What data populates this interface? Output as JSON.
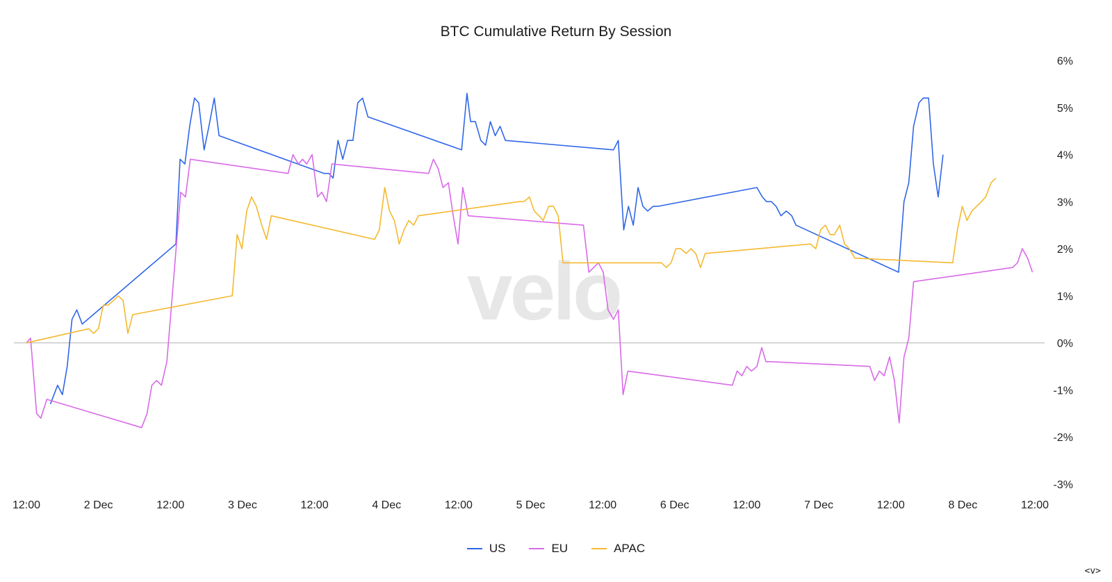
{
  "chart_data": {
    "type": "line",
    "title": "BTC Cumulative Return By Session",
    "xlabel": "",
    "ylabel": "",
    "x_axis": {
      "type": "time",
      "start": "2023-12-01T12:00",
      "end": "2023-12-08T12:00",
      "ticks": [
        {
          "t": 0,
          "label": "12:00"
        },
        {
          "t": 12,
          "label": "2 Dec"
        },
        {
          "t": 24,
          "label": "12:00"
        },
        {
          "t": 36,
          "label": "3 Dec"
        },
        {
          "t": 48,
          "label": "12:00"
        },
        {
          "t": 60,
          "label": "4 Dec"
        },
        {
          "t": 72,
          "label": "12:00"
        },
        {
          "t": 84,
          "label": "5 Dec"
        },
        {
          "t": 96,
          "label": "12:00"
        },
        {
          "t": 108,
          "label": "6 Dec"
        },
        {
          "t": 120,
          "label": "12:00"
        },
        {
          "t": 132,
          "label": "7 Dec"
        },
        {
          "t": 144,
          "label": "12:00"
        },
        {
          "t": 156,
          "label": "8 Dec"
        },
        {
          "t": 168,
          "label": "12:00"
        }
      ]
    },
    "y_axis": {
      "min": -3,
      "max": 6,
      "position": "right",
      "ticks": [
        {
          "v": 6,
          "label": "6%"
        },
        {
          "v": 5,
          "label": "5%"
        },
        {
          "v": 4,
          "label": "4%"
        },
        {
          "v": 3,
          "label": "3%"
        },
        {
          "v": 2,
          "label": "2%"
        },
        {
          "v": 1,
          "label": "1%"
        },
        {
          "v": 0,
          "label": "0%"
        },
        {
          "v": -1,
          "label": "-1%"
        },
        {
          "v": -2,
          "label": "-2%"
        },
        {
          "v": -3,
          "label": "-3%"
        }
      ]
    },
    "grid": false,
    "zero_line": true,
    "legend": {
      "position": "bottom-center"
    },
    "watermark": "velo",
    "series": [
      {
        "name": "US",
        "color": "#2f66e8",
        "points": [
          [
            4.0,
            -1.3
          ],
          [
            4.6,
            -1.1
          ],
          [
            5.2,
            -0.9
          ],
          [
            6.0,
            -1.1
          ],
          [
            6.8,
            -0.5
          ],
          [
            7.6,
            0.5
          ],
          [
            8.4,
            0.7
          ],
          [
            9.3,
            0.4
          ],
          [
            24.9,
            2.1
          ],
          [
            25.6,
            3.9
          ],
          [
            26.4,
            3.8
          ],
          [
            27.2,
            4.6
          ],
          [
            28.0,
            5.2
          ],
          [
            28.7,
            5.1
          ],
          [
            29.6,
            4.1
          ],
          [
            30.4,
            4.6
          ],
          [
            31.3,
            5.2
          ],
          [
            32.1,
            4.4
          ],
          [
            49.6,
            3.6
          ],
          [
            50.4,
            3.6
          ],
          [
            51.1,
            3.5
          ],
          [
            51.9,
            4.3
          ],
          [
            52.7,
            3.9
          ],
          [
            53.5,
            4.3
          ],
          [
            54.4,
            4.3
          ],
          [
            55.2,
            5.1
          ],
          [
            56.0,
            5.2
          ],
          [
            56.9,
            4.8
          ],
          [
            72.5,
            4.1
          ],
          [
            73.4,
            5.3
          ],
          [
            74.0,
            4.7
          ],
          [
            74.8,
            4.7
          ],
          [
            75.7,
            4.3
          ],
          [
            76.5,
            4.2
          ],
          [
            77.3,
            4.7
          ],
          [
            78.1,
            4.4
          ],
          [
            78.9,
            4.6
          ],
          [
            79.8,
            4.3
          ],
          [
            97.8,
            4.1
          ],
          [
            98.6,
            4.3
          ],
          [
            99.5,
            2.4
          ],
          [
            100.3,
            2.9
          ],
          [
            101.1,
            2.5
          ],
          [
            101.9,
            3.3
          ],
          [
            102.7,
            2.9
          ],
          [
            103.5,
            2.8
          ],
          [
            104.4,
            2.9
          ],
          [
            105.2,
            2.9
          ],
          [
            121.7,
            3.3
          ],
          [
            122.6,
            3.1
          ],
          [
            123.3,
            3.0
          ],
          [
            124.1,
            3.0
          ],
          [
            124.9,
            2.9
          ],
          [
            125.7,
            2.7
          ],
          [
            126.6,
            2.8
          ],
          [
            127.5,
            2.7
          ],
          [
            128.2,
            2.5
          ],
          [
            145.3,
            1.5
          ],
          [
            146.2,
            3.0
          ],
          [
            147.0,
            3.4
          ],
          [
            147.8,
            4.6
          ],
          [
            148.7,
            5.1
          ],
          [
            149.4,
            5.2
          ],
          [
            150.3,
            5.2
          ],
          [
            151.1,
            3.8
          ],
          [
            151.9,
            3.1
          ],
          [
            152.7,
            4.0
          ]
        ]
      },
      {
        "name": "EU",
        "color": "#d86ae8",
        "points": [
          [
            0.0,
            0.0
          ],
          [
            0.7,
            0.1
          ],
          [
            1.7,
            -1.5
          ],
          [
            2.4,
            -1.6
          ],
          [
            3.4,
            -1.2
          ],
          [
            19.2,
            -1.8
          ],
          [
            20.1,
            -1.5
          ],
          [
            20.9,
            -0.9
          ],
          [
            21.7,
            -0.8
          ],
          [
            22.5,
            -0.9
          ],
          [
            23.4,
            -0.4
          ],
          [
            25.7,
            3.2
          ],
          [
            26.5,
            3.1
          ],
          [
            27.3,
            3.9
          ],
          [
            43.6,
            3.6
          ],
          [
            44.4,
            4.0
          ],
          [
            45.3,
            3.8
          ],
          [
            46.0,
            3.9
          ],
          [
            46.7,
            3.8
          ],
          [
            47.6,
            4.0
          ],
          [
            48.5,
            3.1
          ],
          [
            49.2,
            3.2
          ],
          [
            50.0,
            3.0
          ],
          [
            50.9,
            3.8
          ],
          [
            67.0,
            3.6
          ],
          [
            67.8,
            3.9
          ],
          [
            68.6,
            3.7
          ],
          [
            69.4,
            3.3
          ],
          [
            70.3,
            3.4
          ],
          [
            71.1,
            2.7
          ],
          [
            71.9,
            2.1
          ],
          [
            72.7,
            3.3
          ],
          [
            73.6,
            2.7
          ],
          [
            92.8,
            2.5
          ],
          [
            93.7,
            1.5
          ],
          [
            94.5,
            1.6
          ],
          [
            95.3,
            1.7
          ],
          [
            96.1,
            1.5
          ],
          [
            96.9,
            0.7
          ],
          [
            97.8,
            0.5
          ],
          [
            98.6,
            0.7
          ],
          [
            99.4,
            -1.1
          ],
          [
            100.2,
            -0.6
          ],
          [
            117.6,
            -0.9
          ],
          [
            118.4,
            -0.6
          ],
          [
            119.2,
            -0.7
          ],
          [
            120.0,
            -0.5
          ],
          [
            120.8,
            -0.6
          ],
          [
            121.7,
            -0.5
          ],
          [
            122.5,
            -0.1
          ],
          [
            123.2,
            -0.4
          ],
          [
            124.1,
            -0.4
          ],
          [
            140.5,
            -0.5
          ],
          [
            141.3,
            -0.8
          ],
          [
            142.1,
            -0.6
          ],
          [
            142.9,
            -0.7
          ],
          [
            143.8,
            -0.3
          ],
          [
            144.6,
            -0.8
          ],
          [
            145.4,
            -1.7
          ],
          [
            146.2,
            -0.3
          ],
          [
            147.0,
            0.1
          ],
          [
            147.8,
            1.3
          ],
          [
            164.3,
            1.6
          ],
          [
            165.1,
            1.7
          ],
          [
            165.9,
            2.0
          ],
          [
            166.8,
            1.8
          ],
          [
            167.6,
            1.5
          ]
        ]
      },
      {
        "name": "APAC",
        "color": "#f5b82e",
        "points": [
          [
            0.0,
            0.0
          ],
          [
            10.4,
            0.3
          ],
          [
            11.2,
            0.2
          ],
          [
            12.0,
            0.3
          ],
          [
            12.8,
            0.8
          ],
          [
            13.6,
            0.8
          ],
          [
            14.5,
            0.9
          ],
          [
            15.3,
            1.0
          ],
          [
            16.1,
            0.9
          ],
          [
            16.9,
            0.2
          ],
          [
            17.7,
            0.6
          ],
          [
            34.3,
            1.0
          ],
          [
            35.1,
            2.3
          ],
          [
            35.9,
            2.0
          ],
          [
            36.7,
            2.8
          ],
          [
            37.5,
            3.1
          ],
          [
            38.3,
            2.9
          ],
          [
            39.2,
            2.5
          ],
          [
            40.0,
            2.2
          ],
          [
            40.8,
            2.7
          ],
          [
            58.0,
            2.2
          ],
          [
            58.8,
            2.4
          ],
          [
            59.7,
            3.3
          ],
          [
            60.5,
            2.8
          ],
          [
            61.3,
            2.6
          ],
          [
            62.1,
            2.1
          ],
          [
            62.9,
            2.4
          ],
          [
            63.7,
            2.6
          ],
          [
            64.5,
            2.5
          ],
          [
            65.3,
            2.7
          ],
          [
            82.1,
            3.0
          ],
          [
            82.9,
            3.0
          ],
          [
            83.8,
            3.1
          ],
          [
            84.6,
            2.8
          ],
          [
            85.4,
            2.7
          ],
          [
            86.1,
            2.6
          ],
          [
            87.0,
            2.9
          ],
          [
            87.8,
            2.9
          ],
          [
            88.6,
            2.7
          ],
          [
            89.4,
            1.7
          ],
          [
            105.8,
            1.7
          ],
          [
            106.6,
            1.6
          ],
          [
            107.4,
            1.7
          ],
          [
            108.2,
            2.0
          ],
          [
            109.0,
            2.0
          ],
          [
            109.9,
            1.9
          ],
          [
            110.7,
            2.0
          ],
          [
            111.5,
            1.9
          ],
          [
            112.3,
            1.6
          ],
          [
            113.1,
            1.9
          ],
          [
            130.6,
            2.1
          ],
          [
            131.5,
            2.0
          ],
          [
            132.3,
            2.4
          ],
          [
            133.1,
            2.5
          ],
          [
            133.9,
            2.3
          ],
          [
            134.6,
            2.3
          ],
          [
            135.5,
            2.5
          ],
          [
            136.3,
            2.1
          ],
          [
            137.1,
            2.0
          ],
          [
            138.0,
            1.8
          ],
          [
            154.3,
            1.7
          ],
          [
            155.1,
            2.4
          ],
          [
            155.9,
            2.9
          ],
          [
            156.7,
            2.6
          ],
          [
            157.5,
            2.8
          ],
          [
            158.3,
            2.9
          ],
          [
            159.1,
            3.0
          ],
          [
            159.8,
            3.1
          ],
          [
            160.7,
            3.4
          ],
          [
            161.5,
            3.5
          ]
        ]
      }
    ]
  },
  "controls": {
    "nav_label": "<v>"
  }
}
